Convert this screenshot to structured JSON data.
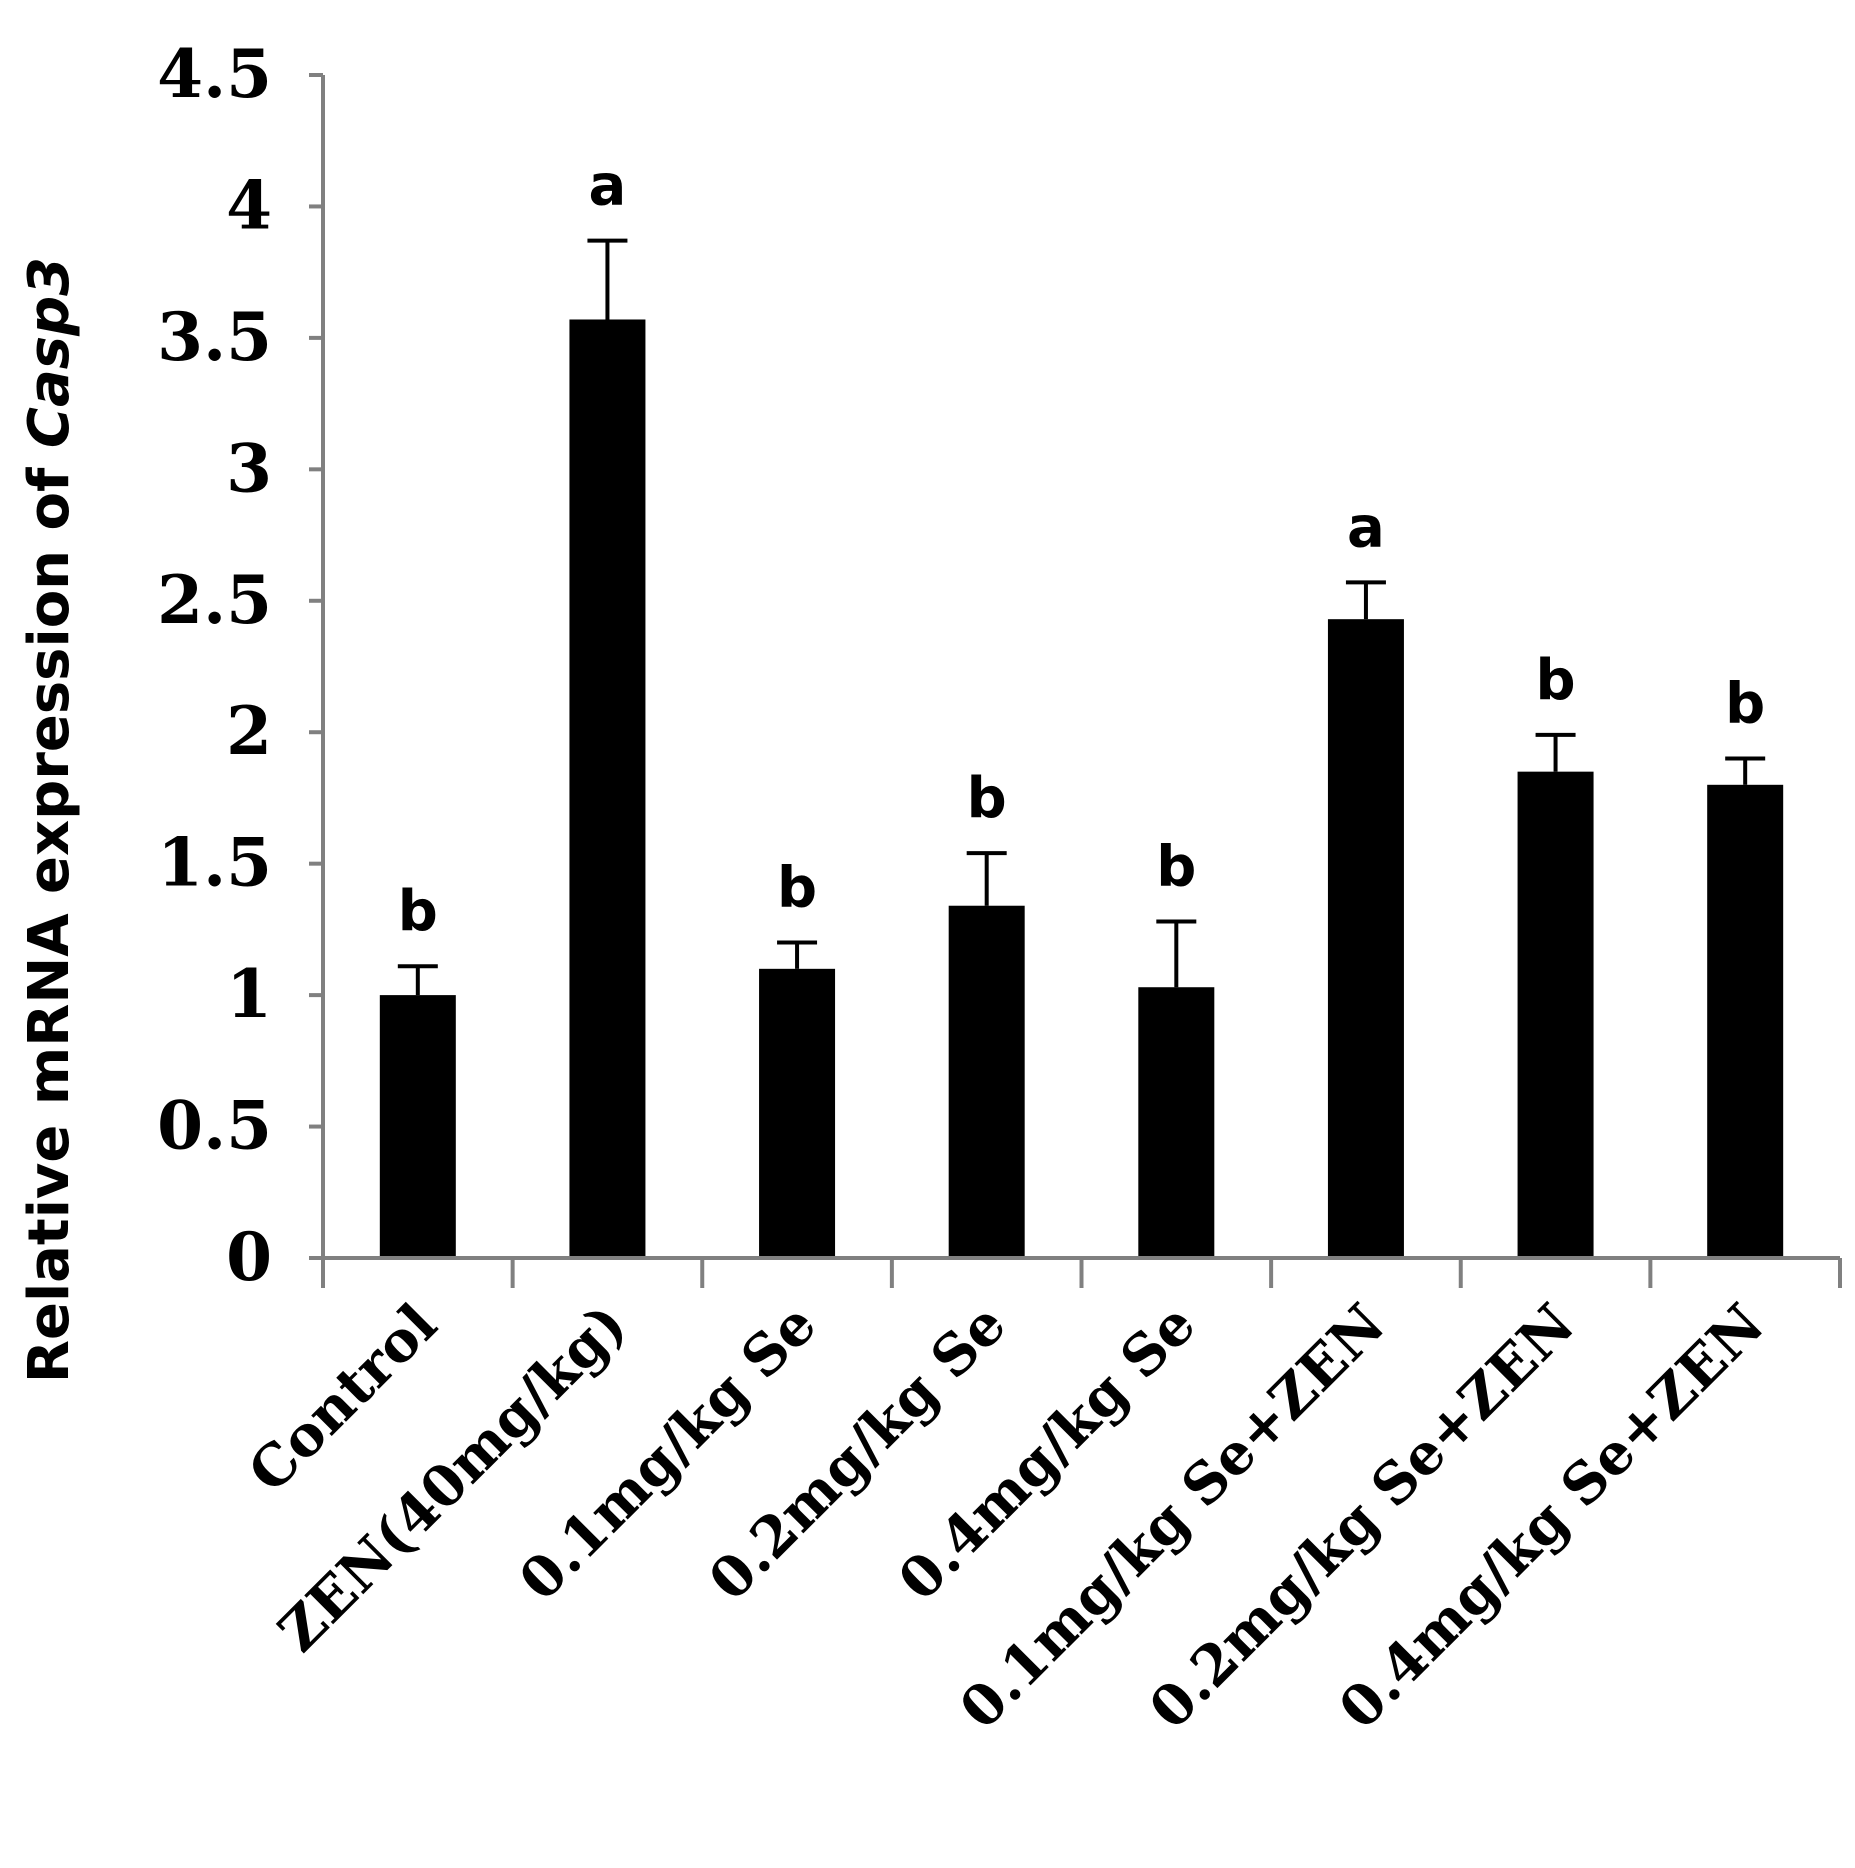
{
  "chart_data": {
    "type": "bar",
    "title": "",
    "xlabel": "",
    "ylabel_prefix": "Relative mRNA expression of ",
    "ylabel_gene": "Casp3",
    "ylim": [
      0,
      4.5
    ],
    "yticks": [
      "0",
      "0.5",
      "1",
      "1.5",
      "2",
      "2.5",
      "3",
      "3.5",
      "4",
      "4.5"
    ],
    "ytick_values": [
      0,
      0.5,
      1,
      1.5,
      2,
      2.5,
      3,
      3.5,
      4,
      4.5
    ],
    "categories": [
      "Control",
      "ZEN(40mg/kg)",
      "0.1mg/kg Se",
      "0.2mg/kg Se",
      "0.4mg/kg Se",
      "0.1mg/kg Se+ZEN",
      "0.2mg/kg Se+ZEN",
      "0.4mg/kg Se+ZEN"
    ],
    "values": [
      1.0,
      3.57,
      1.1,
      1.34,
      1.03,
      2.43,
      1.85,
      1.8
    ],
    "errors": [
      0.11,
      0.3,
      0.1,
      0.2,
      0.25,
      0.14,
      0.14,
      0.1
    ],
    "significance": [
      "b",
      "a",
      "b",
      "b",
      "b",
      "a",
      "b",
      "b"
    ],
    "bar_color": "#000000",
    "axis_color": "#808080",
    "grid": false,
    "legend": "none"
  }
}
